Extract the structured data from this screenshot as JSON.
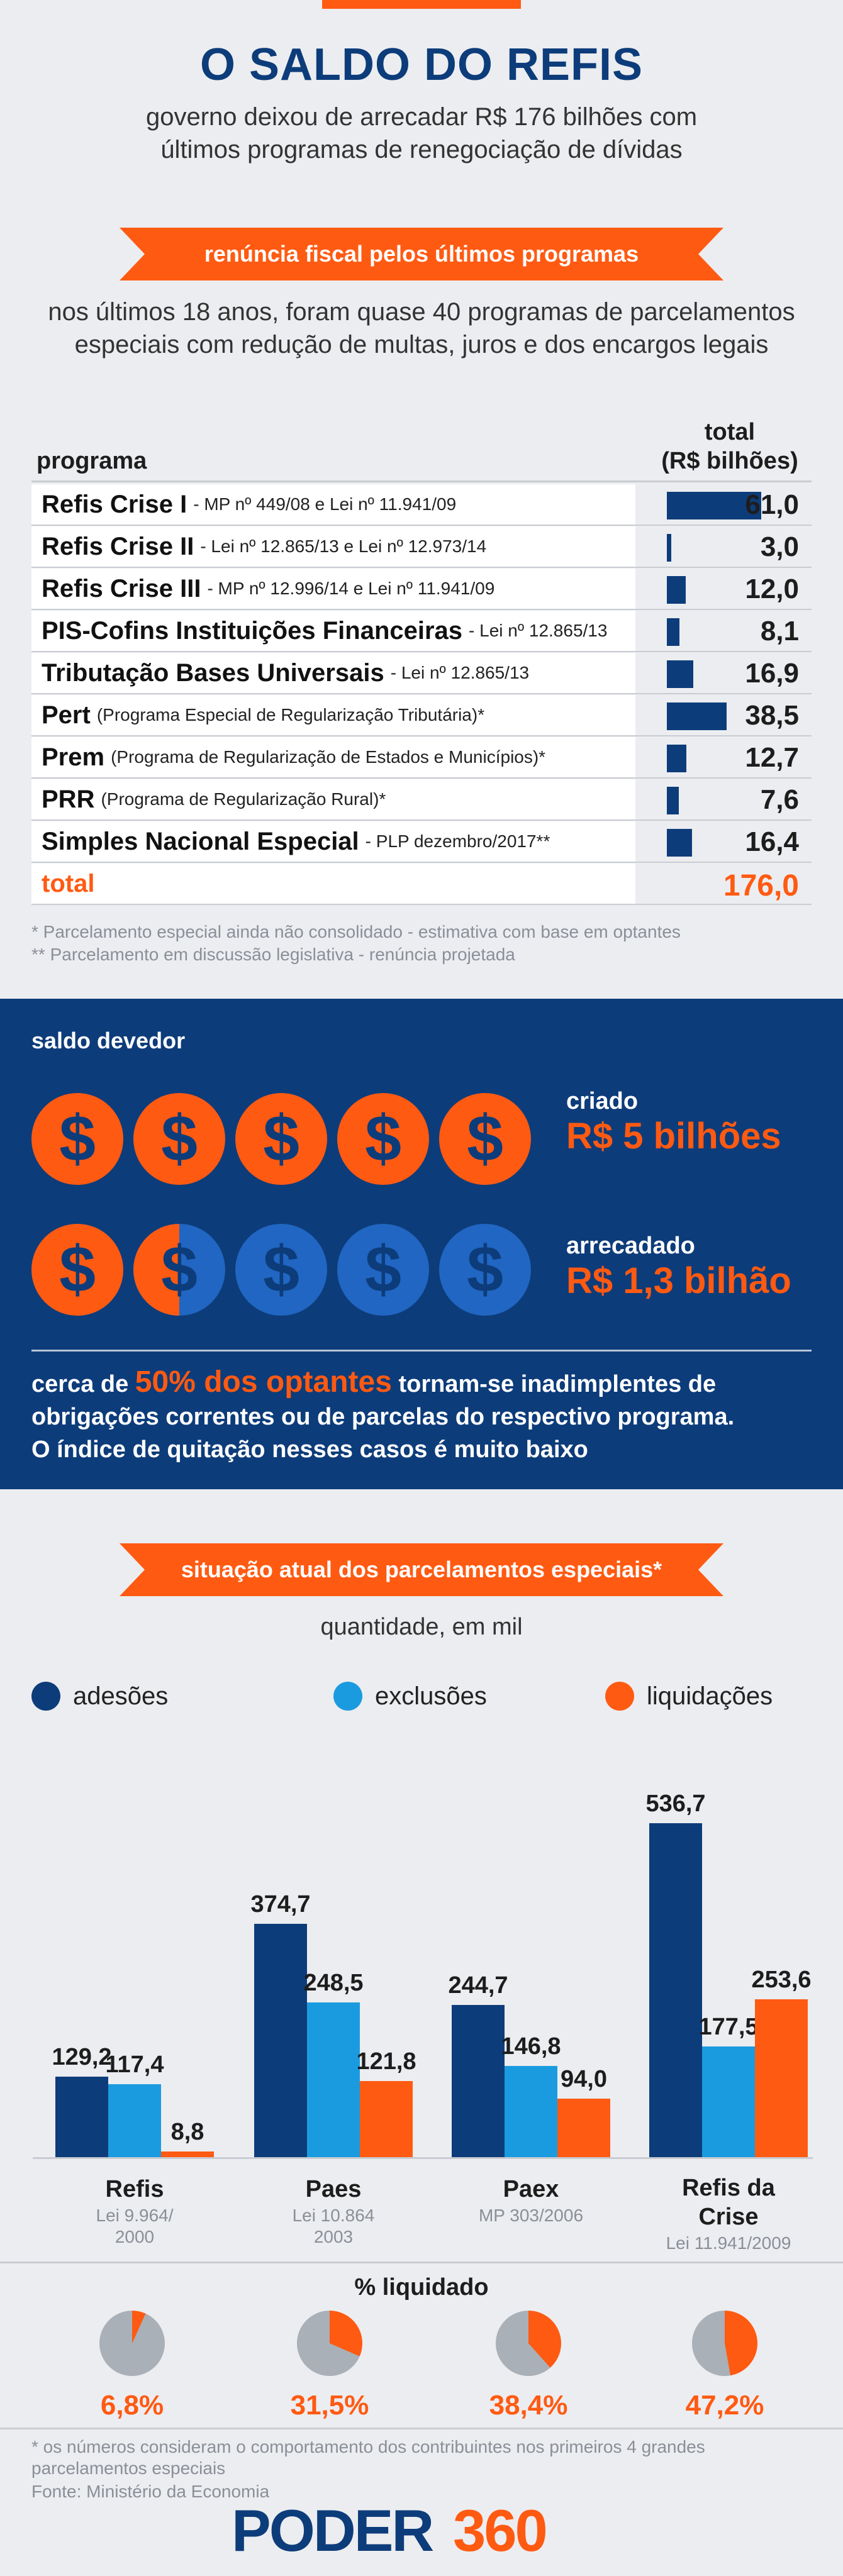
{
  "header": {
    "title": "O SALDO DO REFIS",
    "subtitle_line1": "governo deixou de arrecadar R$ 176 bilhões com",
    "subtitle_line2": "últimos programas de renegociação de dívidas"
  },
  "section1": {
    "ribbon": "renúncia fiscal pelos últimos programas",
    "intro_line1": "nos últimos 18 anos, foram quase 40 programas de parcelamentos",
    "intro_line2": "especiais com redução de multas, juros e dos encargos legais",
    "col_program": "programa",
    "col_total_line1": "total",
    "col_total_line2": "(R$ bilhões)",
    "rows": [
      {
        "name": "Refis Crise I",
        "note": "- MP nº 449/08 e Lei nº 11.941/09",
        "value_label": "61,0"
      },
      {
        "name": "Refis Crise II",
        "note": "- Lei nº 12.865/13 e Lei nº 12.973/14",
        "value_label": "3,0"
      },
      {
        "name": "Refis Crise III",
        "note": "- MP nº 12.996/14 e Lei nº 11.941/09",
        "value_label": "12,0"
      },
      {
        "name": "PIS-Cofins Instituições Financeiras",
        "note": "- Lei nº 12.865/13",
        "value_label": "8,1"
      },
      {
        "name": "Tributação Bases Universais",
        "note": "- Lei nº 12.865/13",
        "value_label": "16,9"
      },
      {
        "name": "Pert",
        "note": "(Programa Especial de Regularização Tributária)*",
        "value_label": "38,5"
      },
      {
        "name": "Prem",
        "note": "(Programa de Regularização de Estados e Municípios)*",
        "value_label": "12,7"
      },
      {
        "name": "PRR",
        "note": "(Programa de Regularização Rural)*",
        "value_label": "7,6"
      },
      {
        "name": "Simples Nacional Especial",
        "note": "- PLP dezembro/2017**",
        "value_label": "16,4"
      }
    ],
    "total_label": "total",
    "total_value": "176,0",
    "footnote1": "* Parcelamento especial ainda não consolidado - estimativa com base em optantes",
    "footnote2": "** Parcelamento em discussão legislativa - renúncia projetada"
  },
  "saldo": {
    "label": "saldo devedor",
    "criado_label": "criado",
    "criado_value": "R$ 5 bilhões",
    "arrecadado_label": "arrecadado",
    "arrecadado_value": "R$ 1,3 bilhão",
    "coin_symbol": "$",
    "text_pre": "cerca de ",
    "text_highlight": "50% dos optantes",
    "text_post": " tornam-se inadimplentes de",
    "text_line2": "obrigações correntes ou de parcelas do respectivo programa.",
    "text_line3": "O índice de quitação nesses casos é muito baixo",
    "colors": {
      "orange": "#ff5a12",
      "blue": "#2066c2",
      "navy": "#0d3c7a"
    }
  },
  "section2": {
    "ribbon": "situação atual dos parcelamentos especiais*",
    "subtitle": "quantidade, em mil",
    "liq_title": "% liquidado",
    "bottom_note": "* os números consideram o comportamento dos contribuintes nos primeiros 4 grandes parcelamentos especiais",
    "source": "Fonte: Ministério da Economia"
  },
  "chart_data": [
    {
      "type": "bar",
      "title": "renúncia fiscal pelos últimos programas",
      "categories": [
        "Refis Crise I",
        "Refis Crise II",
        "Refis Crise III",
        "PIS-Cofins Instituições Financeiras",
        "Tributação Bases Universais",
        "Pert",
        "Prem",
        "PRR",
        "Simples Nacional Especial"
      ],
      "values": [
        61.0,
        3.0,
        12.0,
        8.1,
        16.9,
        38.5,
        12.7,
        7.6,
        16.4
      ],
      "total": 176.0,
      "ylabel": "total (R$ bilhões)",
      "orientation": "horizontal"
    },
    {
      "type": "bar",
      "title": "situação atual dos parcelamentos especiais*",
      "subtitle": "quantidade, em mil",
      "categories": [
        "Refis",
        "Paes",
        "Paex",
        "Refis da Crise"
      ],
      "category_laws": [
        "Lei 9.964/ 2000",
        "Lei 10.864 2003",
        "MP 303/2006",
        "Lei 11.941/2009"
      ],
      "series": [
        {
          "name": "adesões",
          "color": "#0d3c7a",
          "values": [
            129.2,
            374.7,
            244.7,
            536.7
          ],
          "labels": [
            "129,2",
            "374,7",
            "244,7",
            "536,7"
          ]
        },
        {
          "name": "exclusões",
          "color": "#1a9be0",
          "values": [
            117.4,
            248.5,
            146.8,
            177.5
          ],
          "labels": [
            "117,4",
            "248,5",
            "146,8",
            "177,5"
          ]
        },
        {
          "name": "liquidações",
          "color": "#ff5a12",
          "values": [
            8.8,
            121.8,
            94.0,
            253.6
          ],
          "labels": [
            "8,8",
            "121,8",
            "94,0",
            "253,6"
          ]
        }
      ],
      "legend": "top"
    },
    {
      "type": "pie",
      "title": "% liquidado",
      "categories": [
        "Refis",
        "Paes",
        "Paex",
        "Refis da Crise"
      ],
      "values": [
        6.8,
        31.5,
        38.4,
        47.2
      ],
      "labels": [
        "6,8%",
        "31,5%",
        "38,4%",
        "47,2%"
      ],
      "colors": {
        "liquidado": "#ff5a12",
        "restante": "#a9b0b8"
      }
    }
  ]
}
